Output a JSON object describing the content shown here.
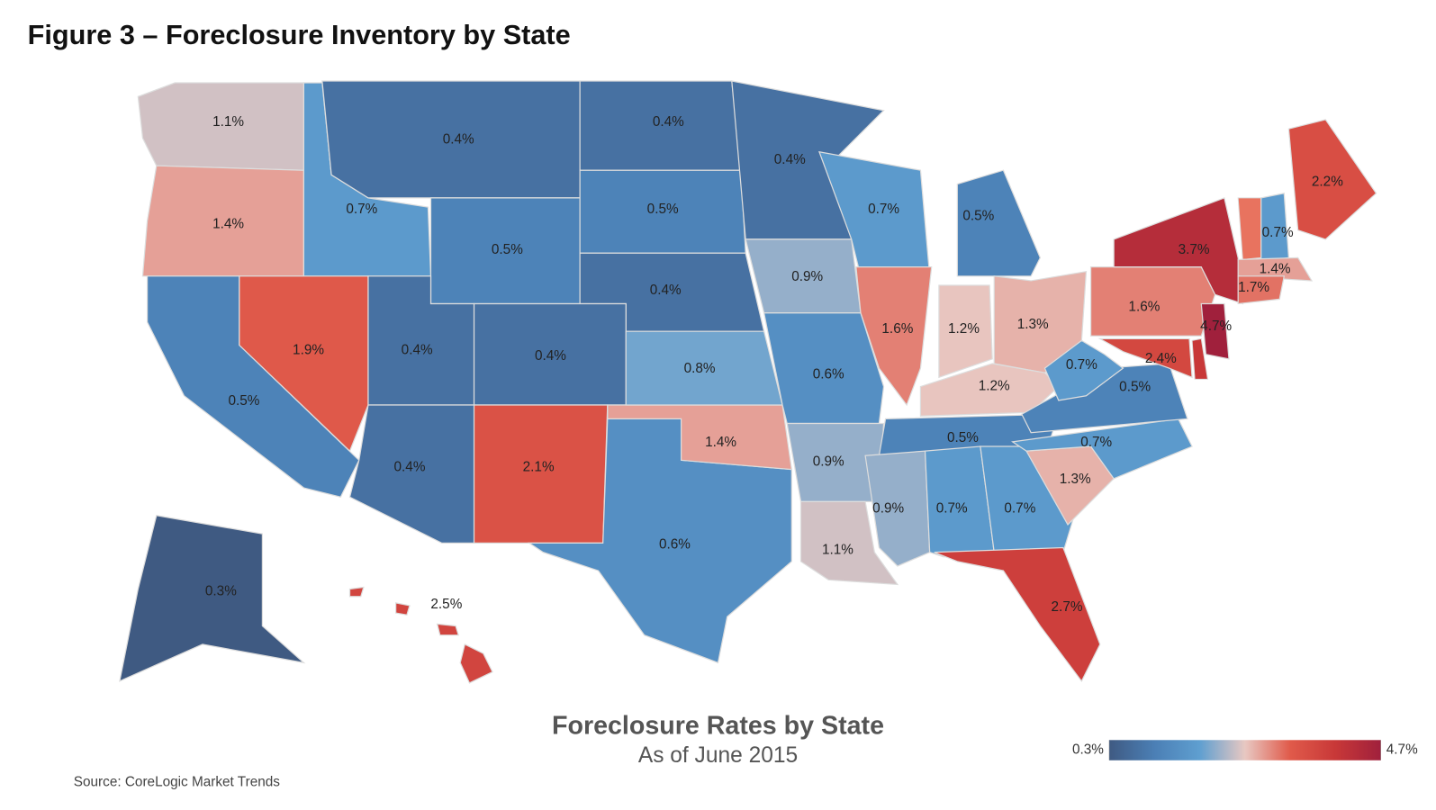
{
  "chart_data": {
    "type": "choropleth",
    "title": "Figure 3 – Foreclosure Inventory by State",
    "subtitle": "Foreclosure Rates by State",
    "date_note": "As of June 2015",
    "source": "Source: CoreLogic Market Trends",
    "values": [
      1.1,
      1.4,
      0.7,
      0.4,
      0.5,
      0.4,
      0.5,
      0.4,
      0.4,
      0.5,
      1.9,
      0.4,
      0.4,
      0.4,
      2.1,
      0.6,
      1.4,
      0.8,
      0.9,
      0.6,
      0.9,
      1.1,
      0.7,
      1.6,
      0.5,
      1.2,
      1.3,
      1.2,
      0.5,
      0.9,
      0.7,
      0.7,
      2.7,
      1.3,
      0.7,
      0.5,
      0.7,
      1.6,
      3.7,
      4.7,
      2.4,
      2.2,
      0.7,
      1.4,
      1.7,
      0.3,
      2.5
    ],
    "value_labels": [
      "1.1%",
      "1.4%",
      "0.7%",
      "0.4%",
      "0.5%",
      "0.4%",
      "0.5%",
      "0.4%",
      "0.4%",
      "0.5%",
      "1.9%",
      "0.4%",
      "0.4%",
      "0.4%",
      "2.1%",
      "0.6%",
      "1.4%",
      "0.8%",
      "0.9%",
      "0.6%",
      "0.9%",
      "1.1%",
      "0.7%",
      "1.6%",
      "0.5%",
      "1.2%",
      "1.3%",
      "1.2%",
      "0.5%",
      "0.9%",
      "0.7%",
      "0.7%",
      "2.7%",
      "1.3%",
      "0.7%",
      "0.5%",
      "0.7%",
      "1.6%",
      "3.7%",
      "4.7%",
      "2.4%",
      "2.2%",
      "0.7%",
      "1.4%",
      "1.7%",
      "0.3%",
      "2.5%"
    ],
    "color_scale": "log",
    "clim": [
      0.3,
      4.7
    ],
    "colormap": [
      "#3f5a82",
      "#4b7fb5",
      "#5f9fd0",
      "#e8c8c2",
      "#e05a4a",
      "#c83838",
      "#a0203c"
    ],
    "cticks": [
      {
        "value": 0.3,
        "label": "0.3%"
      },
      {
        "value": 4.7,
        "label": "4.7%"
      }
    ]
  }
}
